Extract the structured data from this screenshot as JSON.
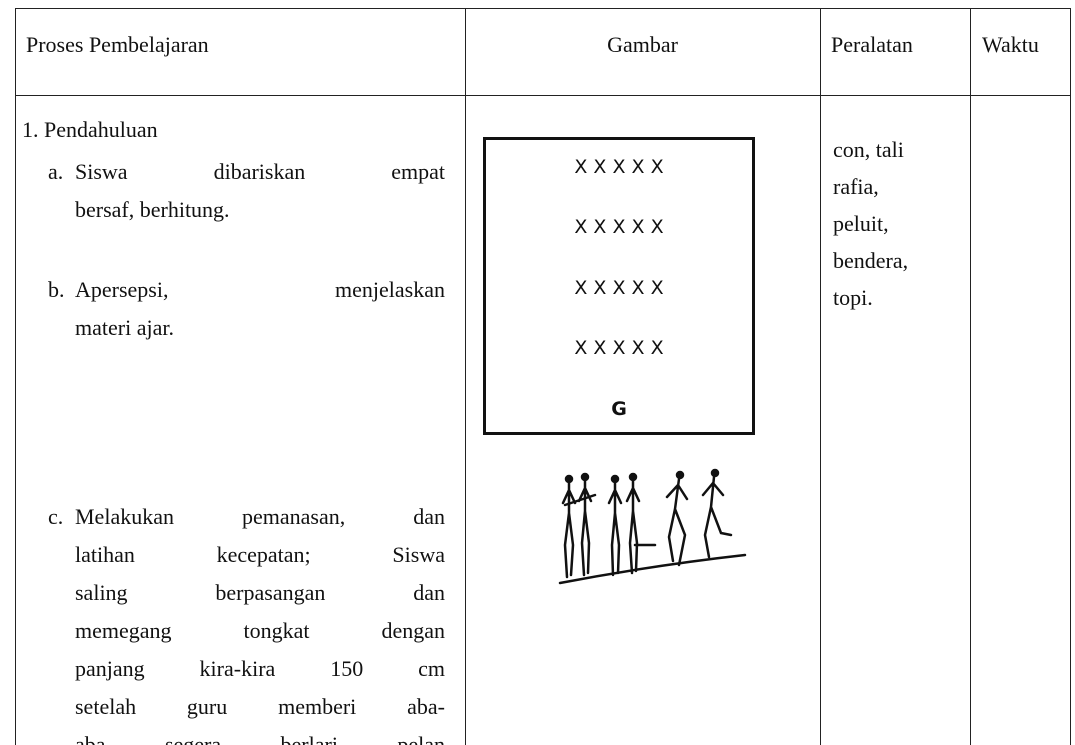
{
  "header": {
    "columns": [
      "Proses Pembelajaran",
      "Gambar",
      "Peralatan",
      "Waktu"
    ]
  },
  "body": {
    "section": "1. Pendahuluan",
    "items": [
      {
        "label": "a.",
        "lines": [
          "Siswa dibariskan empat",
          "bersaf, berhitung."
        ]
      },
      {
        "label": "b.",
        "lines": [
          "Apersepsi, menjelaskan",
          "materi ajar."
        ]
      },
      {
        "label": "c.",
        "lines": [
          "Melakukan pemanasan, dan",
          "latihan kecepatan; Siswa",
          "saling berpasangan dan",
          "memegang tongkat dengan",
          "panjang kira-kira 150 cm",
          "setelah guru memberi aba-",
          "aba segera berlari pelan"
        ]
      }
    ]
  },
  "diagram": {
    "rows": [
      "X X X X X",
      "X X X X X",
      "X X X X X",
      "X X X X X"
    ],
    "teacher": "G"
  },
  "equipment": {
    "lines": [
      "con, tali",
      "rafia,",
      "peluit,",
      "bendera,",
      "topi."
    ]
  }
}
